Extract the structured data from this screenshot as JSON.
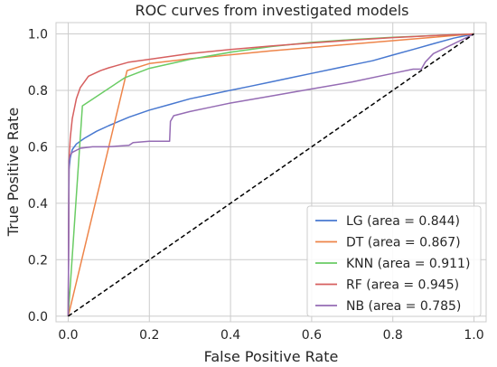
{
  "chart_data": {
    "type": "line",
    "title": "ROC curves from investigated models",
    "xlabel": "False Positive Rate",
    "ylabel": "True Positive Rate",
    "xlim": [
      -0.03,
      1.03
    ],
    "ylim": [
      -0.02,
      1.04
    ],
    "xticks": [
      0.0,
      0.2,
      0.4,
      0.6,
      0.8,
      1.0
    ],
    "yticks": [
      0.0,
      0.2,
      0.4,
      0.6,
      0.8,
      1.0
    ],
    "xtick_labels": [
      "0.0",
      "0.2",
      "0.4",
      "0.6",
      "0.8",
      "1.0"
    ],
    "ytick_labels": [
      "0.0",
      "0.2",
      "0.4",
      "0.6",
      "0.8",
      "1.0"
    ],
    "grid": true,
    "legend_position": "lower-right",
    "series": [
      {
        "name": "LG (area = 0.844)",
        "color": "#4878d0",
        "x": [
          0.0,
          0.002,
          0.005,
          0.01,
          0.02,
          0.04,
          0.07,
          0.1,
          0.15,
          0.2,
          0.25,
          0.3,
          0.35,
          0.4,
          0.45,
          0.5,
          0.55,
          0.6,
          0.65,
          0.7,
          0.75,
          0.8,
          0.85,
          0.9,
          0.95,
          1.0
        ],
        "y": [
          0.0,
          0.52,
          0.56,
          0.59,
          0.61,
          0.63,
          0.655,
          0.675,
          0.705,
          0.73,
          0.75,
          0.77,
          0.785,
          0.8,
          0.815,
          0.83,
          0.845,
          0.86,
          0.875,
          0.89,
          0.905,
          0.925,
          0.945,
          0.965,
          0.985,
          1.0
        ]
      },
      {
        "name": "DT (area = 0.867)",
        "color": "#ee854a",
        "x": [
          0.0,
          0.145,
          0.2,
          0.3,
          0.4,
          0.5,
          0.6,
          0.7,
          0.8,
          0.9,
          1.0
        ],
        "y": [
          0.0,
          0.87,
          0.895,
          0.912,
          0.926,
          0.94,
          0.952,
          0.964,
          0.976,
          0.988,
          1.0
        ]
      },
      {
        "name": "KNN (area = 0.911)",
        "color": "#6acc64",
        "x": [
          0.0,
          0.035,
          0.14,
          0.2,
          0.3,
          0.4,
          0.5,
          0.6,
          0.7,
          0.8,
          0.9,
          1.0
        ],
        "y": [
          0.0,
          0.745,
          0.845,
          0.878,
          0.91,
          0.935,
          0.955,
          0.97,
          0.98,
          0.988,
          0.994,
          1.0
        ]
      },
      {
        "name": "RF (area = 0.945)",
        "color": "#d65f5f",
        "x": [
          0.0,
          0.002,
          0.005,
          0.01,
          0.02,
          0.03,
          0.05,
          0.08,
          0.1,
          0.15,
          0.2,
          0.3,
          0.4,
          0.5,
          0.6,
          0.7,
          0.8,
          0.9,
          1.0
        ],
        "y": [
          0.0,
          0.55,
          0.63,
          0.7,
          0.77,
          0.81,
          0.85,
          0.87,
          0.88,
          0.9,
          0.91,
          0.93,
          0.945,
          0.957,
          0.968,
          0.978,
          0.987,
          0.994,
          1.0
        ]
      },
      {
        "name": "NB (area = 0.785)",
        "color": "#956cb4",
        "x": [
          0.0,
          0.002,
          0.005,
          0.01,
          0.03,
          0.06,
          0.1,
          0.15,
          0.16,
          0.2,
          0.25,
          0.252,
          0.26,
          0.3,
          0.35,
          0.4,
          0.5,
          0.6,
          0.7,
          0.8,
          0.85,
          0.87,
          0.88,
          0.9,
          0.95,
          1.0
        ],
        "y": [
          0.0,
          0.55,
          0.57,
          0.58,
          0.595,
          0.6,
          0.6,
          0.605,
          0.615,
          0.62,
          0.62,
          0.69,
          0.71,
          0.725,
          0.74,
          0.755,
          0.78,
          0.805,
          0.83,
          0.86,
          0.875,
          0.875,
          0.9,
          0.93,
          0.965,
          1.0
        ]
      }
    ],
    "reference_line": {
      "x": [
        0.0,
        1.0
      ],
      "y": [
        0.0,
        1.0
      ],
      "color": "#000000",
      "style": "dashed"
    }
  }
}
